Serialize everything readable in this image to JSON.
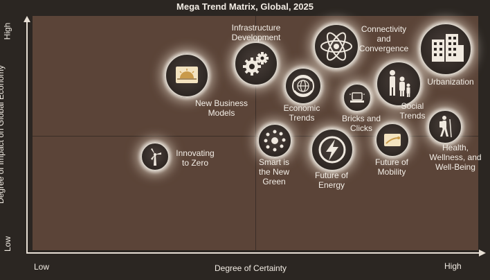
{
  "title": "Mega Trend Matrix, Global, 2025",
  "y_axis": {
    "label": "Degree of Impact on Global Economy",
    "high": "High",
    "low": "Low"
  },
  "x_axis": {
    "label": "Degree of Certainty",
    "low": "Low",
    "high": "High"
  },
  "trends": [
    {
      "label": "Infrastructure\nDevelopment",
      "icon": "gears-icon"
    },
    {
      "label": "Connectivity\nand\nConvergence",
      "icon": "atom-icon"
    },
    {
      "label": "Urbanization",
      "icon": "buildings-icon"
    },
    {
      "label": "New Business\nModels",
      "icon": "sunrise-icon"
    },
    {
      "label": "Economic\nTrends",
      "icon": "globe-icon"
    },
    {
      "label": "Bricks and\nClicks",
      "icon": "laptop-icon"
    },
    {
      "label": "Social\nTrends",
      "icon": "family-icon"
    },
    {
      "label": "Innovating\nto Zero",
      "icon": "wind-turbine-icon"
    },
    {
      "label": "Smart is\nthe New\nGreen",
      "icon": "smart-dots-icon"
    },
    {
      "label": "Future of\nEnergy",
      "icon": "lightning-icon"
    },
    {
      "label": "Future of\nMobility",
      "icon": "mobility-icon"
    },
    {
      "label": "Health,\nWellness, and\nWell-Being",
      "icon": "hiker-icon"
    }
  ]
}
